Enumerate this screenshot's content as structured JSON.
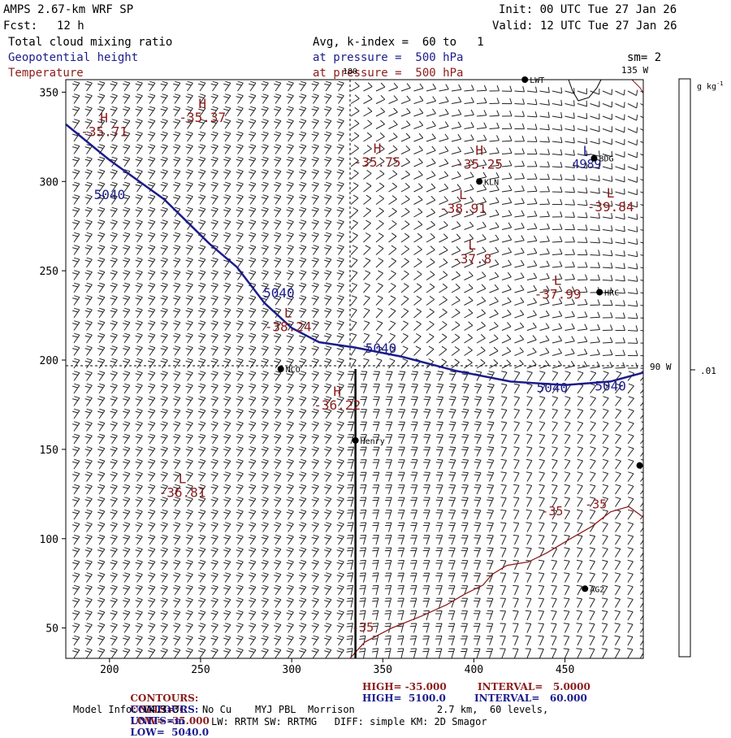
{
  "header": {
    "model": "AMPS 2.67-km WRF SP",
    "init": "Init: 00 UTC Tue 27 Jan 26",
    "fcst_label": "Fcst:",
    "fcst_value": "12 h",
    "valid": "Valid: 12 UTC Tue 27 Jan 26",
    "field1": "Total cloud mixing ratio",
    "field1_desc": "Avg, k-index =  60 to   1",
    "field2": "Geopotential height",
    "field2_desc": "at pressure =  500 hPa",
    "field3": "Temperature",
    "field3_desc": "at pressure =  500 hPa",
    "sm": "sm= 2",
    "lon_label": "135 W",
    "colorbar_unit": "g kg",
    "colorbar_unit_sup": "-1",
    "colorbar_value": ".01",
    "lon_right": "90 W",
    "lon_top": "180"
  },
  "chart_data": {
    "type": "map",
    "xticks": [
      "200",
      "250",
      "300",
      "350",
      "400",
      "450"
    ],
    "yticks": [
      "350",
      "300",
      "250",
      "200",
      "150",
      "100",
      "50"
    ],
    "xlim": [
      176,
      493
    ],
    "ylim": [
      33,
      357
    ],
    "stations": [
      {
        "name": "NCO",
        "x": 294,
        "y": 195
      },
      {
        "name": "Henry",
        "x": 335,
        "y": 155
      },
      {
        "name": "KLN",
        "x": 403,
        "y": 300
      },
      {
        "name": "BDG",
        "x": 466,
        "y": 313
      },
      {
        "name": "HRC",
        "x": 469,
        "y": 238
      },
      {
        "name": "AG2",
        "x": 461,
        "y": 72
      },
      {
        "name": "LWT",
        "x": 428,
        "y": 357
      },
      {
        "name": "",
        "x": 491,
        "y": 141
      }
    ],
    "height_contour": {
      "value": "5040",
      "points": [
        [
          176,
          332
        ],
        [
          200,
          312
        ],
        [
          230,
          290
        ],
        [
          255,
          265
        ],
        [
          270,
          252
        ],
        [
          285,
          232
        ],
        [
          300,
          218
        ],
        [
          315,
          210
        ],
        [
          335,
          207
        ],
        [
          360,
          202
        ],
        [
          390,
          194
        ],
        [
          420,
          188
        ],
        [
          450,
          186
        ],
        [
          475,
          188
        ],
        [
          493,
          193
        ]
      ],
      "labels": [
        [
          200,
          290
        ],
        [
          293,
          235
        ],
        [
          349,
          204
        ],
        [
          443,
          182
        ],
        [
          475,
          183
        ]
      ]
    },
    "temperature_contour": {
      "value": "-35",
      "points": [
        [
          332,
          33
        ],
        [
          340,
          42
        ],
        [
          355,
          50
        ],
        [
          372,
          57
        ],
        [
          385,
          63
        ],
        [
          395,
          69
        ],
        [
          405,
          74
        ],
        [
          410,
          80
        ],
        [
          418,
          85
        ],
        [
          430,
          87
        ],
        [
          440,
          92
        ],
        [
          453,
          100
        ],
        [
          465,
          107
        ],
        [
          475,
          115
        ],
        [
          485,
          118
        ],
        [
          493,
          112
        ]
      ],
      "labels": [
        [
          339,
          48
        ],
        [
          443,
          113
        ],
        [
          467,
          117
        ]
      ]
    },
    "temperature_markers": [
      {
        "type": "H",
        "value": "-35.71",
        "x": 197,
        "y": 333
      },
      {
        "type": "H",
        "value": "-35.37",
        "x": 251,
        "y": 341
      },
      {
        "type": "H",
        "value": "-35.75",
        "x": 347,
        "y": 316
      },
      {
        "type": "H",
        "value": "-35.25",
        "x": 403,
        "y": 315
      },
      {
        "type": "L",
        "value": "-38.91",
        "x": 394,
        "y": 290
      },
      {
        "type": "L",
        "value": "-39.84",
        "x": 475,
        "y": 291
      },
      {
        "type": "L",
        "value": "-37.8",
        "x": 399,
        "y": 262
      },
      {
        "type": "L",
        "value": "-37.99",
        "x": 446,
        "y": 242
      },
      {
        "type": "L",
        "value": "-38.24",
        "x": 298,
        "y": 224
      },
      {
        "type": "H",
        "value": "-36.22",
        "x": 325,
        "y": 180
      },
      {
        "type": "L",
        "value": "-36.81",
        "x": 240,
        "y": 131
      }
    ],
    "height_marker": {
      "type": "L",
      "value": "4989",
      "x": 462,
      "y": 311
    },
    "cross_section": {
      "x": 335,
      "y_from": 33,
      "y_to": 195
    }
  },
  "footer": {
    "line1": {
      "label": "CONTOURS:",
      "units": "UNITS=°C",
      "low": "LOW= -35.000",
      "high": "HIGH= -35.000",
      "interval": "INTERVAL=   5.0000"
    },
    "line2": {
      "label": "CONTOURS:",
      "units": "UNITS=m",
      "low": "LOW=  5040.0",
      "high": "HIGH=  5100.0",
      "interval": "INTERVAL=   60.000"
    },
    "line3": "Model Info: V4.3.3    No Cu    MYJ PBL  Morrison              2.7 km,  60 levels,",
    "line4": "LW: RRTM SW: RRTMG   DIFF: simple KM: 2D Smagor"
  },
  "colors": {
    "height": "#1c1c8c",
    "temperature": "#8c1c1c",
    "barb": "#222222"
  }
}
